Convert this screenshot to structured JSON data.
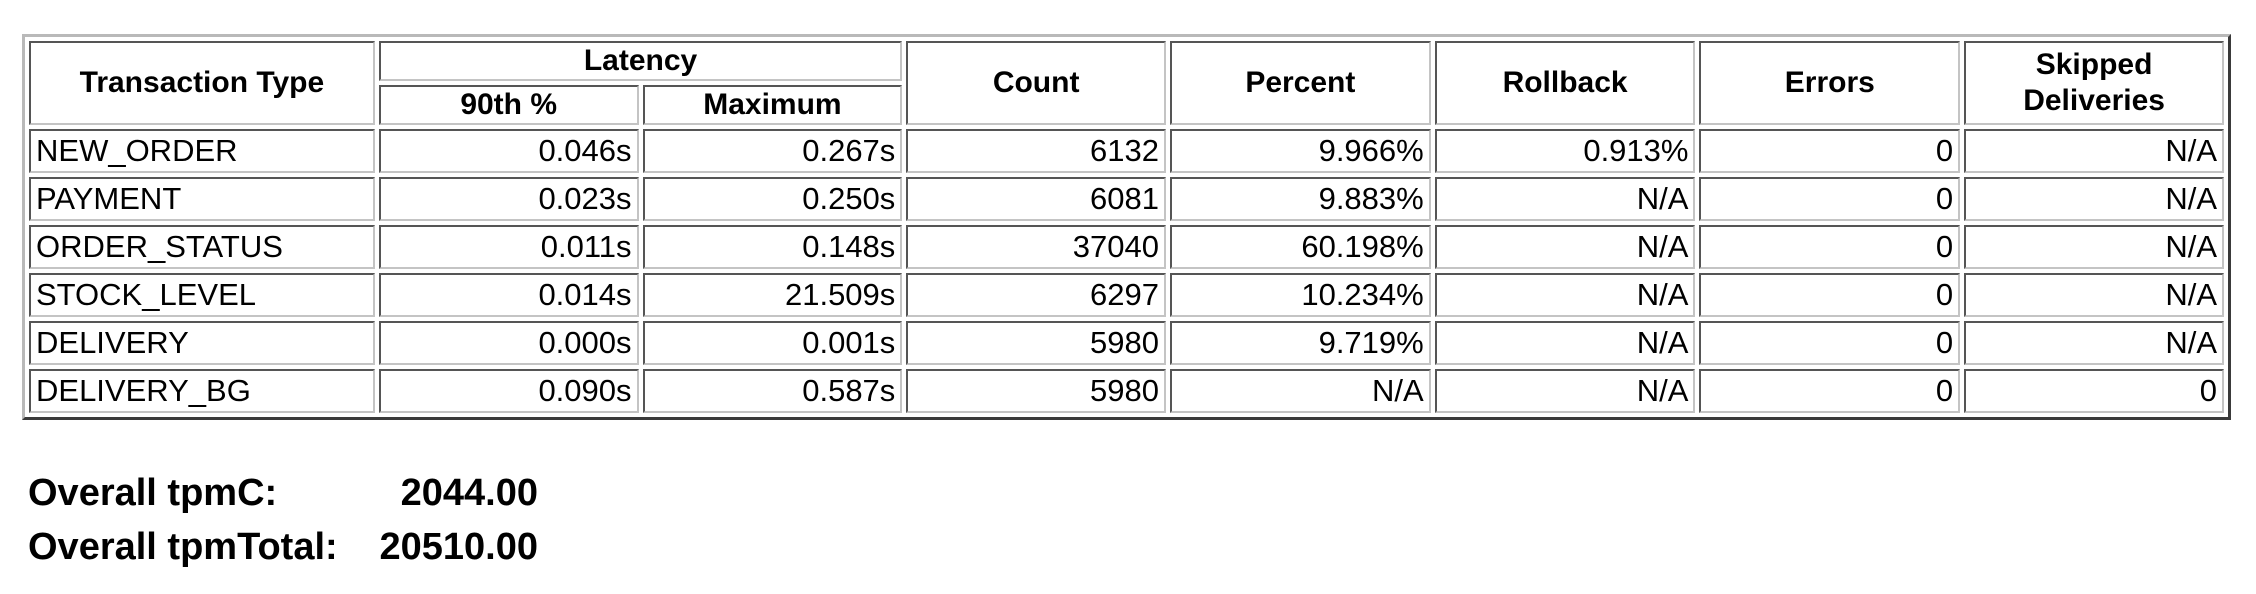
{
  "table": {
    "headers": {
      "transaction_type": "Transaction Type",
      "latency": "Latency",
      "p90": "90th %",
      "maximum": "Maximum",
      "count": "Count",
      "percent": "Percent",
      "rollback": "Rollback",
      "errors": "Errors",
      "skipped": "Skipped Deliveries"
    },
    "rows": [
      {
        "type": "NEW_ORDER",
        "p90": "0.046s",
        "max": "0.267s",
        "count": "6132",
        "percent": "9.966%",
        "rollback": "0.913%",
        "errors": "0",
        "skipped": "N/A"
      },
      {
        "type": "PAYMENT",
        "p90": "0.023s",
        "max": "0.250s",
        "count": "6081",
        "percent": "9.883%",
        "rollback": "N/A",
        "errors": "0",
        "skipped": "N/A"
      },
      {
        "type": "ORDER_STATUS",
        "p90": "0.011s",
        "max": "0.148s",
        "count": "37040",
        "percent": "60.198%",
        "rollback": "N/A",
        "errors": "0",
        "skipped": "N/A"
      },
      {
        "type": "STOCK_LEVEL",
        "p90": "0.014s",
        "max": "21.509s",
        "count": "6297",
        "percent": "10.234%",
        "rollback": "N/A",
        "errors": "0",
        "skipped": "N/A"
      },
      {
        "type": "DELIVERY",
        "p90": "0.000s",
        "max": "0.001s",
        "count": "5980",
        "percent": "9.719%",
        "rollback": "N/A",
        "errors": "0",
        "skipped": "N/A"
      },
      {
        "type": "DELIVERY_BG",
        "p90": "0.090s",
        "max": "0.587s",
        "count": "5980",
        "percent": "N/A",
        "rollback": "N/A",
        "errors": "0",
        "skipped": "0"
      }
    ]
  },
  "summary": {
    "tpmc_label": "Overall tpmC:",
    "tpmc_value": "2044.00",
    "tpmtotal_label": "Overall tpmTotal:",
    "tpmtotal_value": "20510.00"
  }
}
